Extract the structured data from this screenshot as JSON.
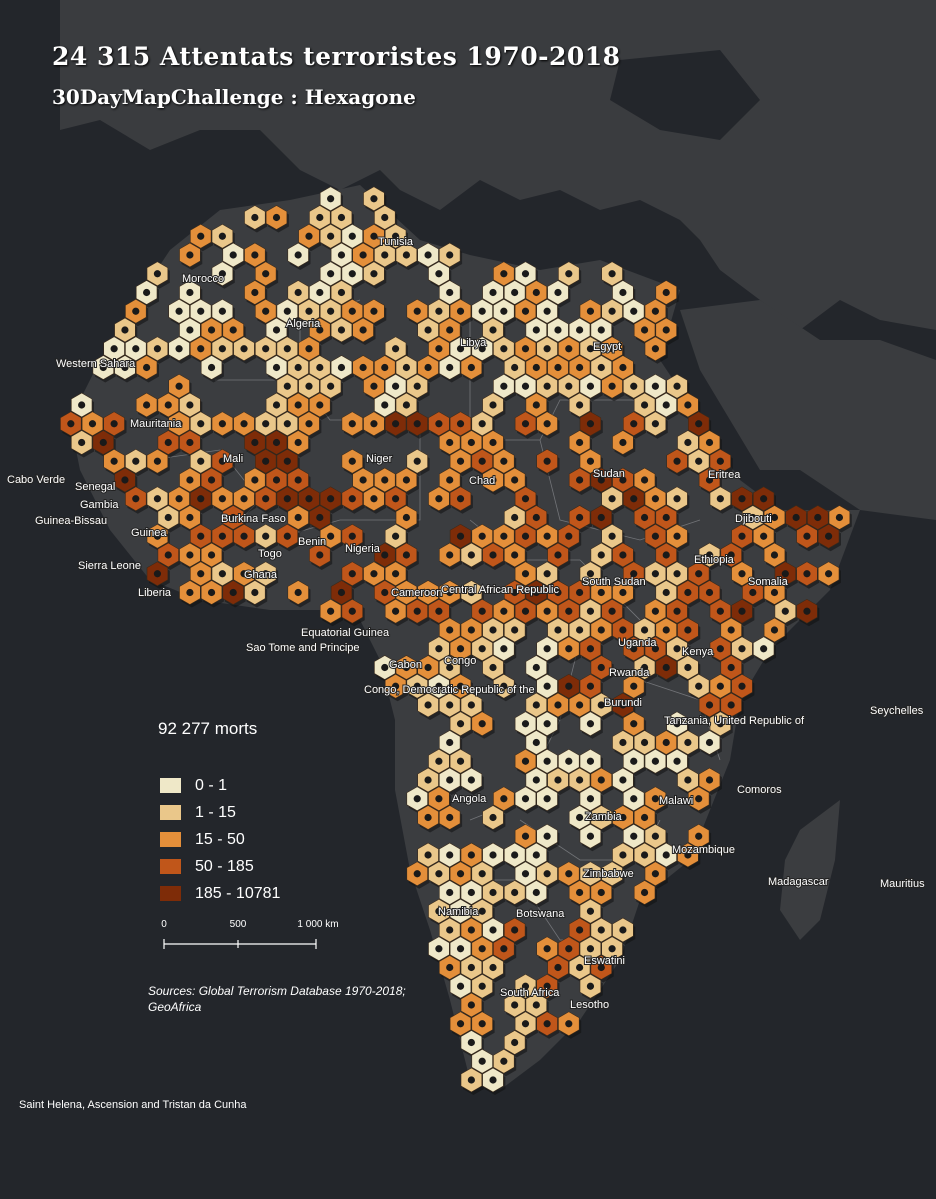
{
  "title": "24 315 Attentats terroristes 1970-2018",
  "subtitle": "30DayMapChallenge : Hexagone",
  "total_deaths_label": "92 277 morts",
  "legend": {
    "classes": [
      {
        "label": "0 - 1",
        "color": "#efe8c8"
      },
      {
        "label": "1 - 15",
        "color": "#eac78a"
      },
      {
        "label": "15 - 50",
        "color": "#e48f3a"
      },
      {
        "label": "50 - 185",
        "color": "#c0561a"
      },
      {
        "label": "185 - 10781",
        "color": "#7e2c08"
      }
    ]
  },
  "scale_bar": {
    "ticks": [
      "0",
      "500",
      "1 000 km"
    ]
  },
  "sources": "Sources: Global Terrorism Database 1970-2018; GeoAfrica",
  "footer_note": "Saint Helena, Ascension and Tristan da Cunha",
  "countries": [
    "Tunisia",
    "Morocco",
    "Algeria",
    "Libya",
    "Egypt",
    "Western Sahara",
    "Mauritania",
    "Mali",
    "Niger",
    "Chad",
    "Sudan",
    "Eritrea",
    "Djibouti",
    "Cabo Verde",
    "Senegal",
    "Gambia",
    "Guinea-Bissau",
    "Guinea",
    "Burkina Faso",
    "Benin",
    "Togo",
    "Nigeria",
    "Sierra Leone",
    "Liberia",
    "Ghana",
    "Cameroon",
    "Central African Republic",
    "South Sudan",
    "Ethiopia",
    "Somalia",
    "Equatorial Guinea",
    "Sao Tome and Principe",
    "Uganda",
    "Kenya",
    "Gabon",
    "Congo",
    "Rwanda",
    "Congo, Democratic Republic of the",
    "Burundi",
    "Tanzania, United Republic of",
    "Seychelles",
    "Angola",
    "Malawi",
    "Comoros",
    "Zambia",
    "Mozambique",
    "Zimbabwe",
    "Madagascar",
    "Mauritius",
    "Namibia",
    "Botswana",
    "Eswatini",
    "South Africa",
    "Lesotho"
  ],
  "colors": {
    "background": "#23262b",
    "land": "#3b3d40",
    "border": "#8a8c90"
  }
}
